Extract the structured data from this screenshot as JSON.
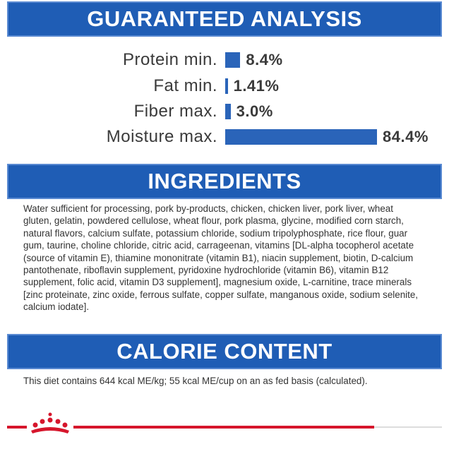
{
  "chart_data": {
    "type": "bar",
    "orientation": "horizontal",
    "title": "GUARANTEED ANALYSIS",
    "categories": [
      "Protein min.",
      "Fat min.",
      "Fiber max.",
      "Moisture max."
    ],
    "values": [
      8.4,
      1.41,
      3.0,
      84.4
    ],
    "value_labels": [
      "8.4%",
      "1.41%",
      "3.0%",
      "84.4%"
    ],
    "color": "#2a64b9"
  },
  "ingredients": {
    "title": "INGREDIENTS",
    "text": "Water sufficient for processing, pork by-products, chicken, chicken liver, pork liver, wheat gluten, gelatin, powdered cellulose, wheat flour, pork plasma, glycine, modified corn starch, natural flavors, calcium sulfate, potassium chloride, sodium tripolyphosphate, rice flour, guar gum, taurine, choline chloride, citric acid, carrageenan, vitamins [DL-alpha tocopherol acetate (source of vitamin E), thiamine mononitrate (vitamin B1), niacin supplement, biotin, D-calcium pantothenate, riboflavin supplement, pyridoxine hydrochloride (vitamin B6), vitamin B12 supplement, folic acid, vitamin D3 supplement], magnesium oxide, L-carnitine, trace minerals [zinc proteinate, zinc oxide, ferrous sulfate, copper sulfate, manganous oxide, sodium selenite, calcium iodate]."
  },
  "calorie_content": {
    "title": "CALORIE CONTENT",
    "text": "This diet contains 644 kcal ME/kg; 55 kcal ME/cup on an as fed basis (calculated)."
  }
}
